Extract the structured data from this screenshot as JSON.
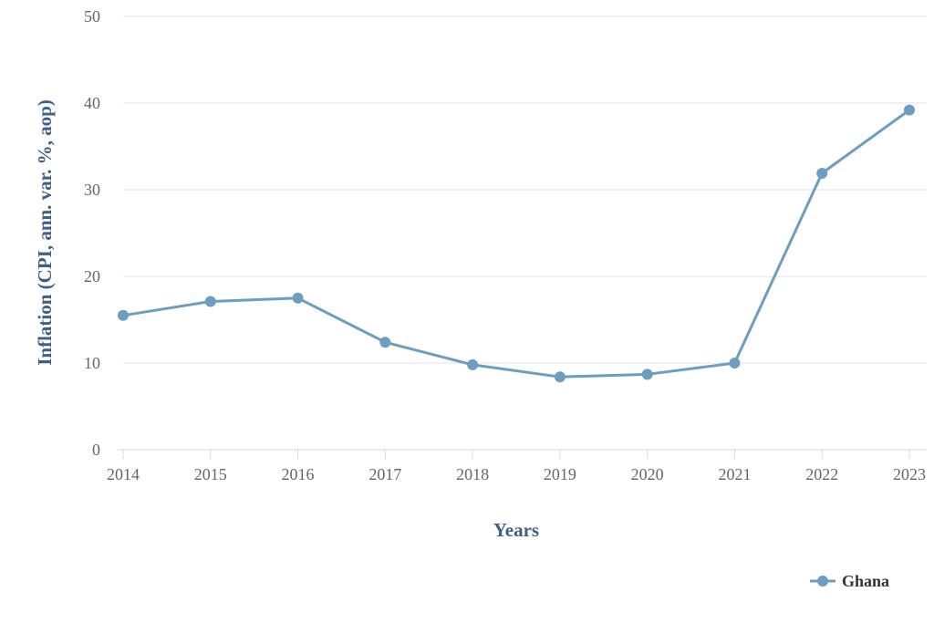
{
  "chart_data": {
    "type": "line",
    "title": "",
    "xlabel": "Years",
    "ylabel": "Inflation (CPI, ann. var. %, aop)",
    "categories": [
      "2014",
      "2015",
      "2016",
      "2017",
      "2018",
      "2019",
      "2020",
      "2021",
      "2022",
      "2023"
    ],
    "y_ticks": [
      "0",
      "10",
      "20",
      "30",
      "40",
      "50"
    ],
    "ylim": [
      0,
      50
    ],
    "grid": "horizontal",
    "legend_position": "bottom-right",
    "series": [
      {
        "name": "Ghana",
        "color": "#6c9ec0",
        "values": [
          15.5,
          17.1,
          17.5,
          12.4,
          9.8,
          8.4,
          8.7,
          10.0,
          31.9,
          39.2
        ]
      }
    ]
  }
}
